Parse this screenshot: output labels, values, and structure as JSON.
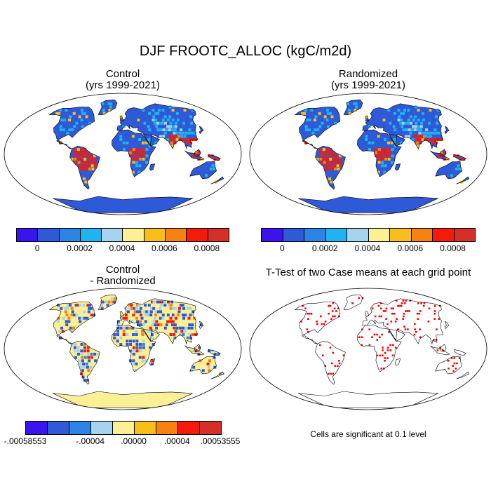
{
  "figure": {
    "title": "DJF FROOTC_ALLOC (kgC/m2d)"
  },
  "panels": [
    {
      "id": "control",
      "title_line1": "Control",
      "title_line2": "(yrs 1999-2021)",
      "kind": "field"
    },
    {
      "id": "randomized",
      "title_line1": "Randomized",
      "title_line2": "(yrs 1999-2021)",
      "kind": "field"
    },
    {
      "id": "difference",
      "title_line1": "Control",
      "title_line2": "- Randomized",
      "kind": "difference"
    },
    {
      "id": "ttest",
      "title_line1": "T-Test of two Case means at each grid point",
      "title_line2": "",
      "kind": "significance"
    }
  ],
  "colorbar_main": {
    "colors": [
      "#3b12f0",
      "#2e5ad8",
      "#2b84e6",
      "#1fb3f0",
      "#a6d3ef",
      "#fbf096",
      "#f8bf1c",
      "#f68212",
      "#f51b0a",
      "#d43028"
    ],
    "tick_labels": [
      "0",
      "0.0002",
      "0.0004",
      "0.0006",
      "0.0008"
    ]
  },
  "colorbar_diff": {
    "colors": [
      "#3b12f0",
      "#2e5ad8",
      "#2b84e6",
      "#a6d3ef",
      "#fbf096",
      "#f8bf1c",
      "#f68212",
      "#f51b0a",
      "#d43028"
    ],
    "tick_labels": [
      "-.00058553",
      "-.00004",
      ".00000",
      ".00004",
      ".00053555"
    ]
  },
  "significance_note": "Cells are significant at 0.1 level",
  "colors": {
    "ocean": "#ffffff",
    "land_low": "#2e5ad8",
    "land_high": "#f51b0a",
    "diff_base": "#fbf096",
    "significant": "#ff0000"
  }
}
